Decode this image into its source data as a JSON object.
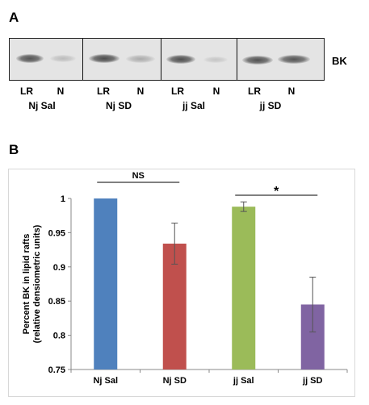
{
  "panel_a": {
    "letter": "A",
    "protein_label": "BK",
    "lane_labels": [
      "LR",
      "N",
      "LR",
      "N",
      "LR",
      "N",
      "LR",
      "N"
    ],
    "group_labels": [
      "Nj Sal",
      "Nj SD",
      "jj Sal",
      "jj SD"
    ]
  },
  "panel_b": {
    "letter": "B"
  },
  "chart_data": {
    "type": "bar",
    "title": "",
    "categories": [
      "Nj Sal",
      "Nj SD",
      "jj Sal",
      "jj SD"
    ],
    "values": [
      1.0,
      0.934,
      0.988,
      0.845
    ],
    "error": [
      0.0,
      0.03,
      0.007,
      0.04
    ],
    "colors": [
      "#4f81bd",
      "#c0504d",
      "#9bbb59",
      "#8064a2"
    ],
    "xlabel": "",
    "ylabel": "Percent BK in lipid rafts (relative densiometric units)",
    "ylabel_lines": [
      "Percent BK in lipid rafts",
      "(relative densiometric units)"
    ],
    "ylim": [
      0.75,
      1.0
    ],
    "yticks": [
      "0.75",
      "0.8",
      "0.85",
      "0.9",
      "0.95",
      "1"
    ],
    "grid": false,
    "annotations": [
      {
        "text": "NS",
        "from": "Nj Sal",
        "to": "Nj SD"
      },
      {
        "text": "*",
        "from": "jj Sal",
        "to": "jj SD"
      }
    ]
  }
}
